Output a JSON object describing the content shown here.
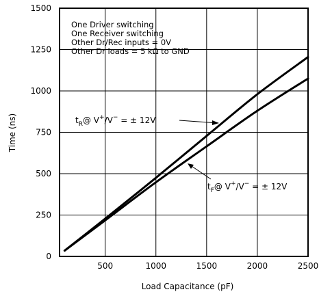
{
  "chart_data": {
    "type": "line",
    "xlabel": "Load Capacitance (pF)",
    "ylabel": "Time (ns)",
    "xlim": [
      50,
      2500
    ],
    "ylim": [
      0,
      1500
    ],
    "x_ticks": [
      500,
      1000,
      1500,
      2000,
      2500
    ],
    "y_ticks": [
      0,
      250,
      500,
      750,
      1000,
      1250,
      1500
    ],
    "grid": true,
    "conditions": [
      "One Driver switching",
      "One Receiver switching",
      "Other Dr/Rec inputs = 0V",
      "Other Dr loads = 5 kΩ to GND"
    ],
    "series": [
      {
        "x": [
          100,
          500,
          1000,
          1500,
          2000,
          2500
        ],
        "y": [
          35,
          228,
          475,
          728,
          980,
          1205
        ]
      },
      {
        "x": [
          100,
          500,
          1000,
          1500,
          2000,
          2500
        ],
        "y": [
          35,
          218,
          448,
          665,
          880,
          1075
        ]
      }
    ],
    "annotations": [
      {
        "series_index": 0,
        "subscript": "R",
        "text": "t@ V+/V− = ± 12V",
        "parts": {
          "t": "t",
          "sub": "R",
          "a": "@ V",
          "sup1": "+",
          "b": "/V",
          "sup2": "−",
          "c": " = ± 12V"
        }
      },
      {
        "series_index": 1,
        "subscript": "F",
        "text": "t@ V+/V− = ± 12V",
        "parts": {
          "t": "t",
          "sub": "F",
          "a": "@ V",
          "sup1": "+",
          "b": "/V",
          "sup2": "−",
          "c": " = ± 12V"
        }
      }
    ]
  }
}
